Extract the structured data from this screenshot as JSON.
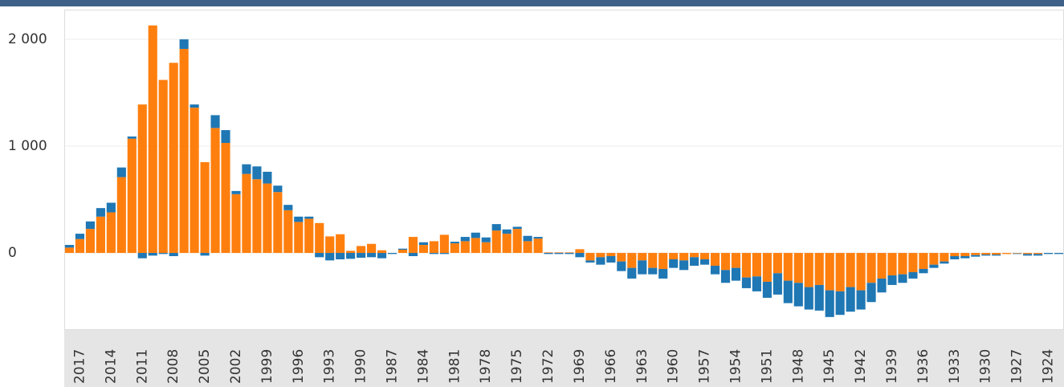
{
  "chart_data": {
    "type": "stacked_bar",
    "categories": [
      null,
      "2017",
      null,
      null,
      "2014",
      null,
      null,
      "2011",
      null,
      null,
      "2008",
      null,
      null,
      "2005",
      null,
      null,
      "2002",
      null,
      null,
      "1999",
      null,
      null,
      "1996",
      null,
      null,
      "1993",
      null,
      null,
      "1990",
      null,
      null,
      "1987",
      null,
      null,
      "1984",
      null,
      null,
      "1981",
      null,
      null,
      "1978",
      null,
      null,
      "1975",
      null,
      null,
      "1972",
      null,
      null,
      "1969",
      null,
      null,
      "1966",
      null,
      null,
      "1963",
      null,
      null,
      "1960",
      null,
      null,
      "1957",
      null,
      null,
      "1954",
      null,
      null,
      "1951",
      null,
      null,
      "1948",
      null,
      null,
      "1945",
      null,
      null,
      "1942",
      null,
      null,
      "1939",
      null,
      null,
      "1936",
      null,
      null,
      "1933",
      null,
      null,
      "1930",
      null,
      null,
      "1927",
      null,
      null,
      "1924",
      null
    ],
    "series": [
      {
        "color": "#ff7f0e",
        "values": [
          50,
          130,
          225,
          340,
          380,
          710,
          1070,
          1390,
          2130,
          1620,
          1780,
          1910,
          1360,
          850,
          1170,
          1030,
          550,
          740,
          690,
          650,
          570,
          400,
          290,
          320,
          280,
          155,
          175,
          20,
          65,
          85,
          25,
          0,
          30,
          150,
          75,
          110,
          170,
          90,
          110,
          140,
          100,
          210,
          180,
          225,
          110,
          135,
          5,
          5,
          5,
          35,
          -70,
          -40,
          -30,
          -80,
          -140,
          -70,
          -140,
          -150,
          -60,
          -70,
          -40,
          -60,
          -120,
          -160,
          -140,
          -230,
          -220,
          -270,
          -190,
          -260,
          -280,
          -320,
          -300,
          -350,
          -360,
          -320,
          -350,
          -280,
          -240,
          -210,
          -200,
          -180,
          -150,
          -110,
          -80,
          -30,
          -30,
          -20,
          -15,
          -15,
          -10,
          -5,
          -10,
          -10,
          0,
          0
        ]
      },
      {
        "color": "#1f77b4",
        "values": [
          25,
          50,
          70,
          80,
          90,
          90,
          20,
          -50,
          -25,
          -10,
          -30,
          90,
          30,
          -25,
          120,
          120,
          30,
          90,
          120,
          110,
          60,
          50,
          50,
          20,
          -40,
          -70,
          -60,
          -55,
          -45,
          -40,
          -50,
          -10,
          10,
          -30,
          25,
          -10,
          -10,
          15,
          40,
          50,
          45,
          60,
          40,
          20,
          50,
          15,
          -10,
          -10,
          -10,
          -40,
          -20,
          -70,
          -60,
          -90,
          -100,
          -130,
          -60,
          -90,
          -80,
          -90,
          -80,
          -50,
          -80,
          -120,
          -120,
          -100,
          -140,
          -150,
          -200,
          -210,
          -220,
          -210,
          -240,
          -250,
          -220,
          -230,
          -180,
          -180,
          -130,
          -90,
          -80,
          -60,
          -40,
          -30,
          -20,
          -30,
          -20,
          -15,
          -10,
          -10,
          0,
          -5,
          -15,
          -15,
          -10,
          -10
        ]
      }
    ],
    "ylim": [
      -714,
      2278
    ],
    "yticks": [
      0,
      {
        "value": 1000,
        "label": "1 000"
      },
      {
        "value": 2000,
        "label": "2 000"
      }
    ],
    "grid": true
  }
}
